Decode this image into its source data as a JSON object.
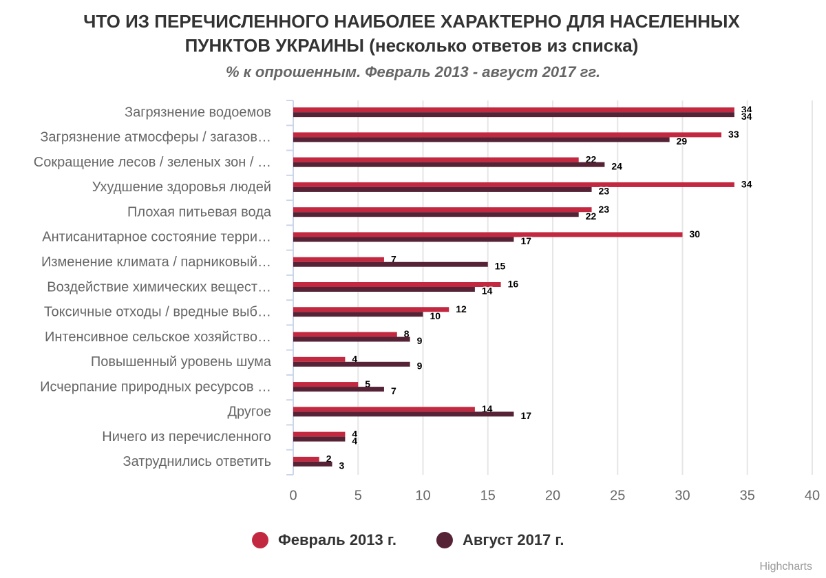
{
  "chart_data": {
    "type": "bar",
    "title": [
      "ЧТО ИЗ ПЕРЕЧИСЛЕННОГО НАИБОЛЕЕ ХАРАКТЕРНО ДЛЯ НАСЕЛЕННЫХ",
      "ПУНКТОВ УКРАИНЫ (несколько ответов из списка)"
    ],
    "subtitle": "% к опрошенным. Февраль 2013 - август 2017 гг.",
    "categories": [
      "Загрязнение водоемов",
      "Загрязнение атмосферы / загазов…",
      "Сокращение лесов / зеленых зон / …",
      "Ухудшение здоровья людей",
      "Плохая питьевая вода",
      "Антисанитарное состояние терри…",
      "Изменение климата / парниковый…",
      "Воздействие химических вещест…",
      "Токсичные отходы / вредные выб…",
      "Интенсивное сельское хозяйство…",
      "Повышенный уровень шума",
      "Исчерпание природных ресурсов …",
      "Другое",
      "Ничего из перечисленного",
      "Затруднились ответить"
    ],
    "series": [
      {
        "name": "Февраль 2013 г.",
        "color": "#c22940",
        "values": [
          34,
          33,
          22,
          34,
          23,
          30,
          7,
          16,
          12,
          8,
          4,
          5,
          14,
          4,
          2
        ]
      },
      {
        "name": "Август 2017 г.",
        "color": "#562336",
        "values": [
          34,
          29,
          24,
          23,
          22,
          17,
          15,
          14,
          10,
          9,
          9,
          7,
          17,
          4,
          3
        ]
      }
    ],
    "xlim": [
      0,
      40
    ],
    "xticks": [
      0,
      5,
      10,
      15,
      20,
      25,
      30,
      35,
      40
    ],
    "grid": true,
    "credits": "Highcharts"
  }
}
